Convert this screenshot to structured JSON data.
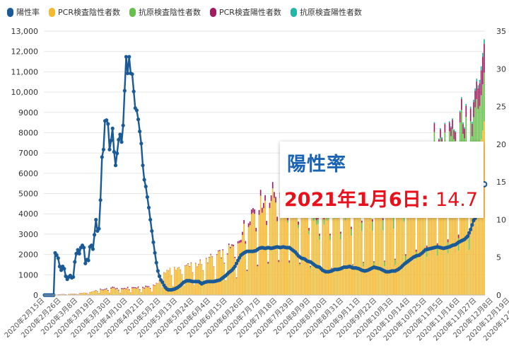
{
  "chart_data": {
    "type": "bar+line",
    "title": "",
    "legend": [
      {
        "name": "陽性率",
        "color": "#1a5a96",
        "kind": "line"
      },
      {
        "name": "PCR検査陰性者数",
        "color": "#f5b82e",
        "kind": "bar"
      },
      {
        "name": "抗原検査陰性者数",
        "color": "#66c04a",
        "kind": "bar"
      },
      {
        "name": "PCR検査陽性者数",
        "color": "#a31a5f",
        "kind": "bar"
      },
      {
        "name": "抗原検査陽性者数",
        "color": "#21b6a8",
        "kind": "bar"
      }
    ],
    "y_left": {
      "min": 0,
      "max": 13000,
      "step": 1000,
      "ticks": [
        "0",
        "1000",
        "2000",
        "3000",
        "4000",
        "5000",
        "6000",
        "7000",
        "8000",
        "9000",
        "10,000",
        "11,000",
        "12,000",
        "13,000"
      ]
    },
    "y_right": {
      "min": 0,
      "max": 35,
      "step": 5,
      "ticks": [
        "0",
        "5",
        "10",
        "15",
        "20",
        "25",
        "30",
        "35"
      ]
    },
    "x_start": "2020-02-15",
    "x_end": "2021-01-06",
    "x_tick_labels": [
      "2020年2月15日",
      "2020年2月26日",
      "2020年3月8日",
      "2020年3月19日",
      "2020年3月30日",
      "2020年4月10日",
      "2020年4月21日",
      "2020年5月2日",
      "2020年5月13日",
      "2020年5月24日",
      "2020年6月4日",
      "2020年6月15日",
      "2020年6月26日",
      "2020年7月7日",
      "2020年7月18日",
      "2020年7月29日",
      "2020年8月9日",
      "2020年8月20日",
      "2020年8月31日",
      "2020年9月11日",
      "2020年9月22日",
      "2020年10月3日",
      "2020年10月14日",
      "2020年10月25日",
      "2020年11月5日",
      "2020年11月16日",
      "2020年11月27日",
      "2020年12月8日",
      "2020年12月19日",
      "2020年12月30日"
    ],
    "positivity_rate_keypoints": [
      [
        0,
        0
      ],
      [
        6,
        0
      ],
      [
        7,
        5.6
      ],
      [
        8,
        5.3
      ],
      [
        9,
        4.9
      ],
      [
        10,
        3.8
      ],
      [
        11,
        3.3
      ],
      [
        12,
        3.8
      ],
      [
        13,
        3.5
      ],
      [
        14,
        2.5
      ],
      [
        15,
        2.1
      ],
      [
        16,
        2.4
      ],
      [
        17,
        2.6
      ],
      [
        18,
        2.3
      ],
      [
        19,
        2.4
      ],
      [
        20,
        4.4
      ],
      [
        21,
        5.5
      ],
      [
        22,
        6.0
      ],
      [
        23,
        5.5
      ],
      [
        24,
        6.3
      ],
      [
        25,
        6.6
      ],
      [
        26,
        6.3
      ],
      [
        27,
        4.2
      ],
      [
        28,
        4.7
      ],
      [
        29,
        4.6
      ],
      [
        30,
        6.4
      ],
      [
        31,
        6.6
      ],
      [
        32,
        6.1
      ],
      [
        33,
        8.0
      ],
      [
        34,
        10.0
      ],
      [
        35,
        8.5
      ],
      [
        36,
        8.8
      ],
      [
        37,
        12.6
      ],
      [
        38,
        18.3
      ],
      [
        39,
        19.3
      ],
      [
        40,
        23.1
      ],
      [
        41,
        23.2
      ],
      [
        42,
        22.7
      ],
      [
        43,
        19.3
      ],
      [
        44,
        20.5
      ],
      [
        45,
        22.1
      ],
      [
        46,
        19.0
      ],
      [
        47,
        17.2
      ],
      [
        48,
        18.8
      ],
      [
        49,
        20.6
      ],
      [
        50,
        21.3
      ],
      [
        51,
        20.3
      ],
      [
        52,
        22.5
      ],
      [
        53,
        27.1
      ],
      [
        54,
        31.6
      ],
      [
        55,
        29.4
      ],
      [
        56,
        31.6
      ],
      [
        57,
        29.4
      ],
      [
        58,
        29.3
      ],
      [
        59,
        27.0
      ],
      [
        60,
        24.8
      ],
      [
        61,
        24.5
      ],
      [
        62,
        23.3
      ],
      [
        63,
        21.7
      ],
      [
        64,
        20.1
      ],
      [
        65,
        17.2
      ],
      [
        66,
        15.3
      ],
      [
        67,
        14.4
      ],
      [
        68,
        13.0
      ],
      [
        69,
        11.6
      ],
      [
        70,
        10.0
      ],
      [
        71,
        8.5
      ],
      [
        72,
        7.0
      ],
      [
        73,
        5.6
      ],
      [
        74,
        4.3
      ],
      [
        75,
        3.2
      ],
      [
        76,
        2.5
      ],
      [
        77,
        2.0
      ],
      [
        78,
        1.7
      ],
      [
        79,
        1.3
      ],
      [
        80,
        1.0
      ],
      [
        81,
        0.8
      ],
      [
        82,
        0.7
      ],
      [
        84,
        0.7
      ],
      [
        86,
        0.8
      ],
      [
        88,
        1.0
      ],
      [
        90,
        1.3
      ],
      [
        92,
        1.7
      ],
      [
        94,
        1.9
      ],
      [
        96,
        1.9
      ],
      [
        98,
        1.8
      ],
      [
        100,
        1.8
      ],
      [
        102,
        1.8
      ],
      [
        104,
        1.5
      ],
      [
        106,
        1.7
      ],
      [
        108,
        1.8
      ],
      [
        110,
        1.8
      ],
      [
        112,
        1.8
      ],
      [
        114,
        1.9
      ],
      [
        116,
        2.0
      ],
      [
        118,
        2.3
      ],
      [
        120,
        2.6
      ],
      [
        122,
        3.0
      ],
      [
        124,
        3.3
      ],
      [
        126,
        3.8
      ],
      [
        128,
        4.6
      ],
      [
        130,
        5.3
      ],
      [
        132,
        5.6
      ],
      [
        134,
        5.8
      ],
      [
        136,
        5.8
      ],
      [
        138,
        5.8
      ],
      [
        140,
        5.9
      ],
      [
        142,
        6.2
      ],
      [
        144,
        6.3
      ],
      [
        146,
        6.2
      ],
      [
        148,
        6.3
      ],
      [
        150,
        6.2
      ],
      [
        152,
        6.3
      ],
      [
        154,
        6.4
      ],
      [
        156,
        6.3
      ],
      [
        158,
        6.4
      ],
      [
        160,
        6.3
      ],
      [
        162,
        6.3
      ],
      [
        164,
        6.0
      ],
      [
        166,
        5.7
      ],
      [
        168,
        5.2
      ],
      [
        170,
        4.9
      ],
      [
        172,
        4.8
      ],
      [
        174,
        4.5
      ],
      [
        176,
        4.4
      ],
      [
        178,
        4.1
      ],
      [
        180,
        3.8
      ],
      [
        182,
        3.7
      ],
      [
        184,
        3.3
      ],
      [
        186,
        3.1
      ],
      [
        188,
        3.1
      ],
      [
        190,
        3.2
      ],
      [
        192,
        3.4
      ],
      [
        194,
        3.4
      ],
      [
        196,
        3.5
      ],
      [
        198,
        3.7
      ],
      [
        200,
        3.7
      ],
      [
        202,
        3.8
      ],
      [
        204,
        3.6
      ],
      [
        206,
        3.6
      ],
      [
        208,
        3.5
      ],
      [
        210,
        3.3
      ],
      [
        212,
        3.2
      ],
      [
        214,
        3.3
      ],
      [
        216,
        3.5
      ],
      [
        218,
        3.7
      ],
      [
        220,
        3.6
      ],
      [
        222,
        3.5
      ],
      [
        224,
        3.3
      ],
      [
        226,
        3.1
      ],
      [
        228,
        3.1
      ],
      [
        230,
        3.2
      ],
      [
        232,
        3.2
      ],
      [
        234,
        3.4
      ],
      [
        236,
        3.7
      ],
      [
        238,
        4.1
      ],
      [
        240,
        4.4
      ],
      [
        242,
        4.7
      ],
      [
        244,
        5.0
      ],
      [
        246,
        5.2
      ],
      [
        248,
        5.3
      ],
      [
        250,
        5.6
      ],
      [
        252,
        6.0
      ],
      [
        254,
        6.1
      ],
      [
        256,
        6.2
      ],
      [
        258,
        6.3
      ],
      [
        260,
        6.4
      ],
      [
        262,
        6.3
      ],
      [
        264,
        6.2
      ],
      [
        266,
        6.3
      ],
      [
        268,
        6.4
      ],
      [
        270,
        6.6
      ],
      [
        272,
        6.7
      ],
      [
        274,
        7.0
      ],
      [
        276,
        7.2
      ],
      [
        278,
        7.4
      ],
      [
        280,
        7.8
      ],
      [
        282,
        8.7
      ],
      [
        284,
        9.9
      ],
      [
        286,
        10.5
      ],
      [
        287,
        12.5
      ],
      [
        288,
        13.5
      ],
      [
        289,
        14.1
      ],
      [
        290,
        14.5
      ],
      [
        291,
        14.7
      ]
    ],
    "bars_daily_total_keypoints": [
      [
        0,
        0
      ],
      [
        10,
        40
      ],
      [
        20,
        60
      ],
      [
        30,
        150
      ],
      [
        36,
        300
      ],
      [
        40,
        300
      ],
      [
        45,
        400
      ],
      [
        50,
        350
      ],
      [
        55,
        380
      ],
      [
        60,
        400
      ],
      [
        65,
        400
      ],
      [
        70,
        480
      ],
      [
        75,
        620
      ],
      [
        78,
        1200
      ],
      [
        82,
        1300
      ],
      [
        86,
        1400
      ],
      [
        90,
        1400
      ],
      [
        95,
        1500
      ],
      [
        100,
        1600
      ],
      [
        105,
        1700
      ],
      [
        110,
        1900
      ],
      [
        115,
        2050
      ],
      [
        120,
        2250
      ],
      [
        125,
        2500
      ],
      [
        130,
        3100
      ],
      [
        135,
        4100
      ],
      [
        140,
        4600
      ],
      [
        145,
        5000
      ],
      [
        150,
        5200
      ],
      [
        155,
        5400
      ],
      [
        160,
        5500
      ],
      [
        165,
        5100
      ],
      [
        170,
        5000
      ],
      [
        175,
        4600
      ],
      [
        180,
        4200
      ],
      [
        185,
        4200
      ],
      [
        190,
        4200
      ],
      [
        195,
        4300
      ],
      [
        200,
        4500
      ],
      [
        205,
        4800
      ],
      [
        210,
        5100
      ],
      [
        215,
        5200
      ],
      [
        220,
        5200
      ],
      [
        225,
        5300
      ],
      [
        230,
        5400
      ],
      [
        235,
        5900
      ],
      [
        240,
        6400
      ],
      [
        245,
        6900
      ],
      [
        250,
        7400
      ],
      [
        255,
        7800
      ],
      [
        260,
        8000
      ],
      [
        265,
        8300
      ],
      [
        270,
        9100
      ],
      [
        275,
        9400
      ],
      [
        280,
        9600
      ],
      [
        285,
        9800
      ],
      [
        288,
        10600
      ],
      [
        291,
        12600
      ]
    ],
    "annotation": {
      "title": "陽性率",
      "date_label": "2021年1月6日:",
      "value": "14.7"
    }
  }
}
